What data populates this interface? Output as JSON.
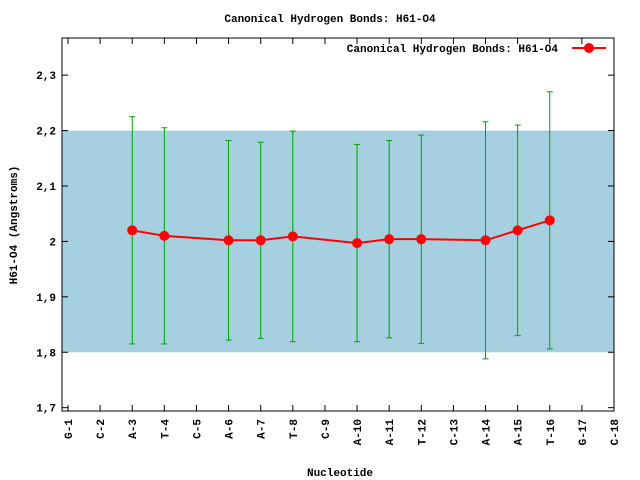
{
  "chart_data": {
    "type": "line",
    "title": "Canonical Hydrogen Bonds: H61-O4",
    "xlabel": "Nucleotide",
    "ylabel": "H61-O4 (Angstroms)",
    "categories": [
      "G-1",
      "C-2",
      "A-3",
      "T-4",
      "C-5",
      "A-6",
      "A-7",
      "T-8",
      "C-9",
      "A-10",
      "A-11",
      "T-12",
      "C-13",
      "A-14",
      "A-15",
      "T-16",
      "G-17",
      "C-18"
    ],
    "series": [
      {
        "name": "Canonical Hydrogen Bonds: H61-O4",
        "color": "#ff0000",
        "error_color": "#00a000",
        "x": [
          "A-3",
          "T-4",
          "A-6",
          "A-7",
          "T-8",
          "A-10",
          "A-11",
          "T-12",
          "A-14",
          "A-15",
          "T-16"
        ],
        "values": [
          2.02,
          2.01,
          2.002,
          2.002,
          2.009,
          1.997,
          2.004,
          2.004,
          2.002,
          2.02,
          2.038
        ],
        "errors": [
          0.205,
          0.195,
          0.18,
          0.177,
          0.19,
          0.178,
          0.178,
          0.188,
          0.214,
          0.19,
          0.232
        ]
      }
    ],
    "band": [
      1.8,
      2.2
    ],
    "band_color": "#a6d0e0",
    "ylim": [
      1.694,
      2.367
    ],
    "yticks": [
      {
        "value": 1.7,
        "label": "1,7"
      },
      {
        "value": 1.8,
        "label": "1,8"
      },
      {
        "value": 1.9,
        "label": "1,9"
      },
      2,
      {
        "value": 2.1,
        "label": "2,1"
      },
      {
        "value": 2.2,
        "label": "2,2"
      },
      {
        "value": 2.3,
        "label": "2,3"
      }
    ],
    "legend": "upper right"
  }
}
